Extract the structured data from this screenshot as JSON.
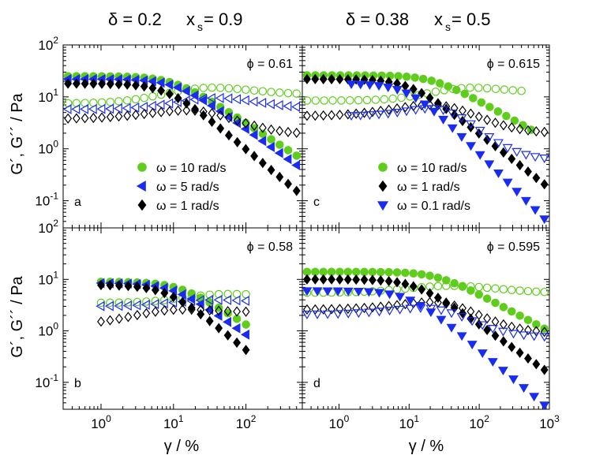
{
  "figure": {
    "left_heading": "δ = 0.2    x_s = 0.9",
    "right_heading": "δ = 0.38    x_s = 0.5",
    "left_heading_parts": {
      "delta": "δ = 0.2",
      "x": "x",
      "sub": "s",
      "val": " = 0.9"
    },
    "right_heading_parts": {
      "delta": "δ = 0.38",
      "x": "x",
      "sub": "s",
      "val": " = 0.5"
    },
    "ylabel": "G´, G´´ / Pa",
    "xlabel": "γ  / %",
    "colors": {
      "green": "#5fcd1c",
      "blue": "#1a2cf0",
      "black": "#000000"
    }
  },
  "chart_data": [
    {
      "id": "a",
      "type": "scatter",
      "panel_label": "a",
      "phi_label": "ϕ = 0.61",
      "xscale": "log",
      "yscale": "log",
      "xlim": [
        0.3,
        600
      ],
      "ylim": [
        0.03,
        100
      ],
      "x_tick_labels": [],
      "y_tick_labels": [
        {
          "value": 100,
          "base": "10",
          "exp": "2"
        },
        {
          "value": 10,
          "base": "10",
          "exp": "1"
        },
        {
          "value": 1,
          "base": "10",
          "exp": "0"
        },
        {
          "value": 0.1,
          "base": "10",
          "exp": "-1"
        }
      ],
      "legend": [
        {
          "label": "ω = 10 rad/s",
          "color": "green",
          "marker": "circle"
        },
        {
          "label": "ω = 5 rad/s",
          "color": "blue",
          "marker": "triangle-left"
        },
        {
          "label": "ω = 1 rad/s",
          "color": "black",
          "marker": "diamond"
        }
      ],
      "series": [
        {
          "name": "G' ω=10",
          "color": "green",
          "marker": "circle",
          "filled": true,
          "n": 28,
          "x_range": [
            0.35,
            500
          ],
          "shape": {
            "type": "drop",
            "plateau": 25,
            "xc": 10,
            "slope": 0.9
          }
        },
        {
          "name": "G'' ω=10",
          "color": "green",
          "marker": "circle",
          "filled": false,
          "n": 28,
          "x_range": [
            0.35,
            500
          ],
          "shape": {
            "type": "hump",
            "plateau": 7.5,
            "peak": 15,
            "xc": 35,
            "width": 0.9,
            "tail": 11
          }
        },
        {
          "name": "G' ω=5",
          "color": "blue",
          "marker": "triangle-left",
          "filled": true,
          "n": 28,
          "x_range": [
            0.35,
            500
          ],
          "shape": {
            "type": "drop",
            "plateau": 22,
            "xc": 11,
            "slope": 1.0
          }
        },
        {
          "name": "G'' ω=5",
          "color": "blue",
          "marker": "triangle-left",
          "filled": false,
          "n": 28,
          "x_range": [
            0.35,
            500
          ],
          "shape": {
            "type": "hump",
            "plateau": 5.8,
            "peak": 9.5,
            "xc": 40,
            "width": 0.8,
            "tail": 6
          }
        },
        {
          "name": "G' ω=1",
          "color": "black",
          "marker": "diamond",
          "filled": true,
          "n": 28,
          "x_range": [
            0.35,
            500
          ],
          "shape": {
            "type": "drop",
            "plateau": 18,
            "xc": 8,
            "slope": 1.15
          }
        },
        {
          "name": "G'' ω=1",
          "color": "black",
          "marker": "diamond",
          "filled": false,
          "n": 28,
          "x_range": [
            0.35,
            500
          ],
          "shape": {
            "type": "hump",
            "plateau": 3.8,
            "peak": 5.5,
            "xc": 15,
            "width": 0.9,
            "tail": 1.9
          }
        }
      ]
    },
    {
      "id": "c",
      "type": "scatter",
      "panel_label": "c",
      "phi_label": "ϕ = 0.615",
      "xscale": "log",
      "yscale": "log",
      "xlim": [
        0.3,
        1000
      ],
      "ylim": [
        0.03,
        100
      ],
      "x_tick_labels": [],
      "y_tick_labels": [],
      "legend": [
        {
          "label": "ω = 10 rad/s",
          "color": "green",
          "marker": "circle"
        },
        {
          "label": "ω = 1 rad/s",
          "color": "black",
          "marker": "diamond"
        },
        {
          "label": "ω = 0.1 rad/s",
          "color": "blue",
          "marker": "triangle-down"
        }
      ],
      "series": [
        {
          "name": "G' ω=10",
          "color": "green",
          "marker": "circle",
          "filled": true,
          "n": 28,
          "x_range": [
            0.35,
            550
          ],
          "shape": {
            "type": "drop",
            "plateau": 26,
            "xc": 22,
            "slope": 0.75
          }
        },
        {
          "name": "G'' ω=10",
          "color": "green",
          "marker": "circle",
          "filled": false,
          "n": 26,
          "x_range": [
            0.35,
            400
          ],
          "shape": {
            "type": "hump",
            "plateau": 8.5,
            "peak": 15,
            "xc": 80,
            "width": 0.8,
            "tail": 12
          }
        },
        {
          "name": "G' ω=1",
          "color": "black",
          "marker": "diamond",
          "filled": true,
          "n": 30,
          "x_range": [
            0.35,
            850
          ],
          "shape": {
            "type": "drop",
            "plateau": 22,
            "xc": 10,
            "slope": 1.05
          }
        },
        {
          "name": "G'' ω=1",
          "color": "black",
          "marker": "diamond",
          "filled": false,
          "n": 30,
          "x_range": [
            0.35,
            850
          ],
          "shape": {
            "type": "hump",
            "plateau": 4.3,
            "peak": 7,
            "xc": 20,
            "width": 0.9,
            "tail": 2.0
          }
        },
        {
          "name": "G' ω=0.1",
          "color": "blue",
          "marker": "triangle-down",
          "filled": true,
          "n": 22,
          "x_range": [
            1.5,
            850
          ],
          "shape": {
            "type": "drop",
            "plateau": 18,
            "xc": 10,
            "slope": 1.35
          }
        },
        {
          "name": "G'' ω=0.1",
          "color": "blue",
          "marker": "triangle-down",
          "filled": false,
          "n": 22,
          "x_range": [
            1.5,
            850
          ],
          "shape": {
            "type": "hump",
            "plateau": 4.3,
            "peak": 6,
            "xc": 20,
            "width": 0.9,
            "tail": 0.6
          }
        }
      ]
    },
    {
      "id": "b",
      "type": "scatter",
      "panel_label": "b",
      "phi_label": "ϕ = 0.58",
      "xscale": "log",
      "yscale": "log",
      "xlim": [
        0.3,
        600
      ],
      "ylim": [
        0.03,
        100
      ],
      "x_tick_labels": [
        {
          "value": 1,
          "base": "10",
          "exp": "0"
        },
        {
          "value": 10,
          "base": "10",
          "exp": "1"
        },
        {
          "value": 100,
          "base": "10",
          "exp": "2"
        }
      ],
      "y_tick_labels": [
        {
          "value": 100,
          "base": "10",
          "exp": "2"
        },
        {
          "value": 10,
          "base": "10",
          "exp": "1"
        },
        {
          "value": 1,
          "base": "10",
          "exp": "0"
        },
        {
          "value": 0.1,
          "base": "10",
          "exp": "-1"
        }
      ],
      "legend": [],
      "series": [
        {
          "name": "G' ω=10",
          "color": "green",
          "marker": "circle",
          "filled": true,
          "n": 17,
          "x_range": [
            1,
            100
          ],
          "shape": {
            "type": "drop",
            "plateau": 9,
            "xc": 12,
            "slope": 0.9
          }
        },
        {
          "name": "G'' ω=10",
          "color": "green",
          "marker": "circle",
          "filled": false,
          "n": 17,
          "x_range": [
            1,
            100
          ],
          "shape": {
            "type": "hump",
            "plateau": 3.5,
            "peak": 5.2,
            "xc": 60,
            "width": 0.8,
            "tail": 5
          }
        },
        {
          "name": "G' ω=5",
          "color": "blue",
          "marker": "triangle-left",
          "filled": true,
          "n": 17,
          "x_range": [
            1,
            100
          ],
          "shape": {
            "type": "drop",
            "plateau": 8.5,
            "xc": 10,
            "slope": 1.0
          }
        },
        {
          "name": "G'' ω=5",
          "color": "blue",
          "marker": "triangle-left",
          "filled": false,
          "n": 17,
          "x_range": [
            1,
            100
          ],
          "shape": {
            "type": "hump",
            "plateau": 3.0,
            "peak": 4.0,
            "xc": 40,
            "width": 0.8,
            "tail": 3.4
          }
        },
        {
          "name": "G' ω=1",
          "color": "black",
          "marker": "diamond",
          "filled": true,
          "n": 17,
          "x_range": [
            1,
            100
          ],
          "shape": {
            "type": "drop",
            "plateau": 7.8,
            "xc": 8,
            "slope": 1.15
          }
        },
        {
          "name": "G'' ω=1",
          "color": "black",
          "marker": "diamond",
          "filled": false,
          "n": 17,
          "x_range": [
            1,
            100
          ],
          "shape": {
            "type": "hump",
            "plateau": 1.3,
            "peak": 2.6,
            "xc": 14,
            "width": 0.9,
            "tail": 2.3
          }
        }
      ]
    },
    {
      "id": "d",
      "type": "scatter",
      "panel_label": "d",
      "phi_label": "ϕ = 0.595",
      "xscale": "log",
      "yscale": "log",
      "xlim": [
        0.3,
        1000
      ],
      "ylim": [
        0.03,
        100
      ],
      "x_tick_labels": [
        {
          "value": 1,
          "base": "10",
          "exp": "0"
        },
        {
          "value": 10,
          "base": "10",
          "exp": "1"
        },
        {
          "value": 100,
          "base": "10",
          "exp": "2"
        },
        {
          "value": 1000,
          "base": "10",
          "exp": "3"
        }
      ],
      "y_tick_labels": [],
      "legend": [],
      "series": [
        {
          "name": "G' ω=10",
          "color": "green",
          "marker": "circle",
          "filled": true,
          "n": 30,
          "x_range": [
            0.35,
            850
          ],
          "shape": {
            "type": "drop",
            "plateau": 14,
            "xc": 25,
            "slope": 0.72
          }
        },
        {
          "name": "G'' ω=10",
          "color": "green",
          "marker": "circle",
          "filled": false,
          "n": 30,
          "x_range": [
            0.35,
            850
          ],
          "shape": {
            "type": "hump",
            "plateau": 5.5,
            "peak": 7.5,
            "xc": 40,
            "width": 0.9,
            "tail": 5.5
          }
        },
        {
          "name": "G' ω=1",
          "color": "black",
          "marker": "diamond",
          "filled": true,
          "n": 30,
          "x_range": [
            0.35,
            850
          ],
          "shape": {
            "type": "drop",
            "plateau": 10,
            "xc": 12,
            "slope": 0.95
          }
        },
        {
          "name": "G'' ω=1",
          "color": "black",
          "marker": "diamond",
          "filled": false,
          "n": 30,
          "x_range": [
            0.35,
            850
          ],
          "shape": {
            "type": "hump",
            "plateau": 2.6,
            "peak": 3.6,
            "xc": 20,
            "width": 0.9,
            "tail": 0.9
          }
        },
        {
          "name": "G' ω=0.1",
          "color": "blue",
          "marker": "triangle-down",
          "filled": true,
          "n": 24,
          "x_range": [
            0.35,
            850
          ],
          "shape": {
            "type": "drop",
            "plateau": 6,
            "xc": 10,
            "slope": 1.15
          }
        },
        {
          "name": "G'' ω=0.1",
          "color": "blue",
          "marker": "triangle-down",
          "filled": false,
          "n": 24,
          "x_range": [
            0.35,
            850
          ],
          "shape": {
            "type": "hump",
            "plateau": 2.1,
            "peak": 2.8,
            "xc": 15,
            "width": 0.9,
            "tail": 0.75
          }
        }
      ]
    }
  ]
}
